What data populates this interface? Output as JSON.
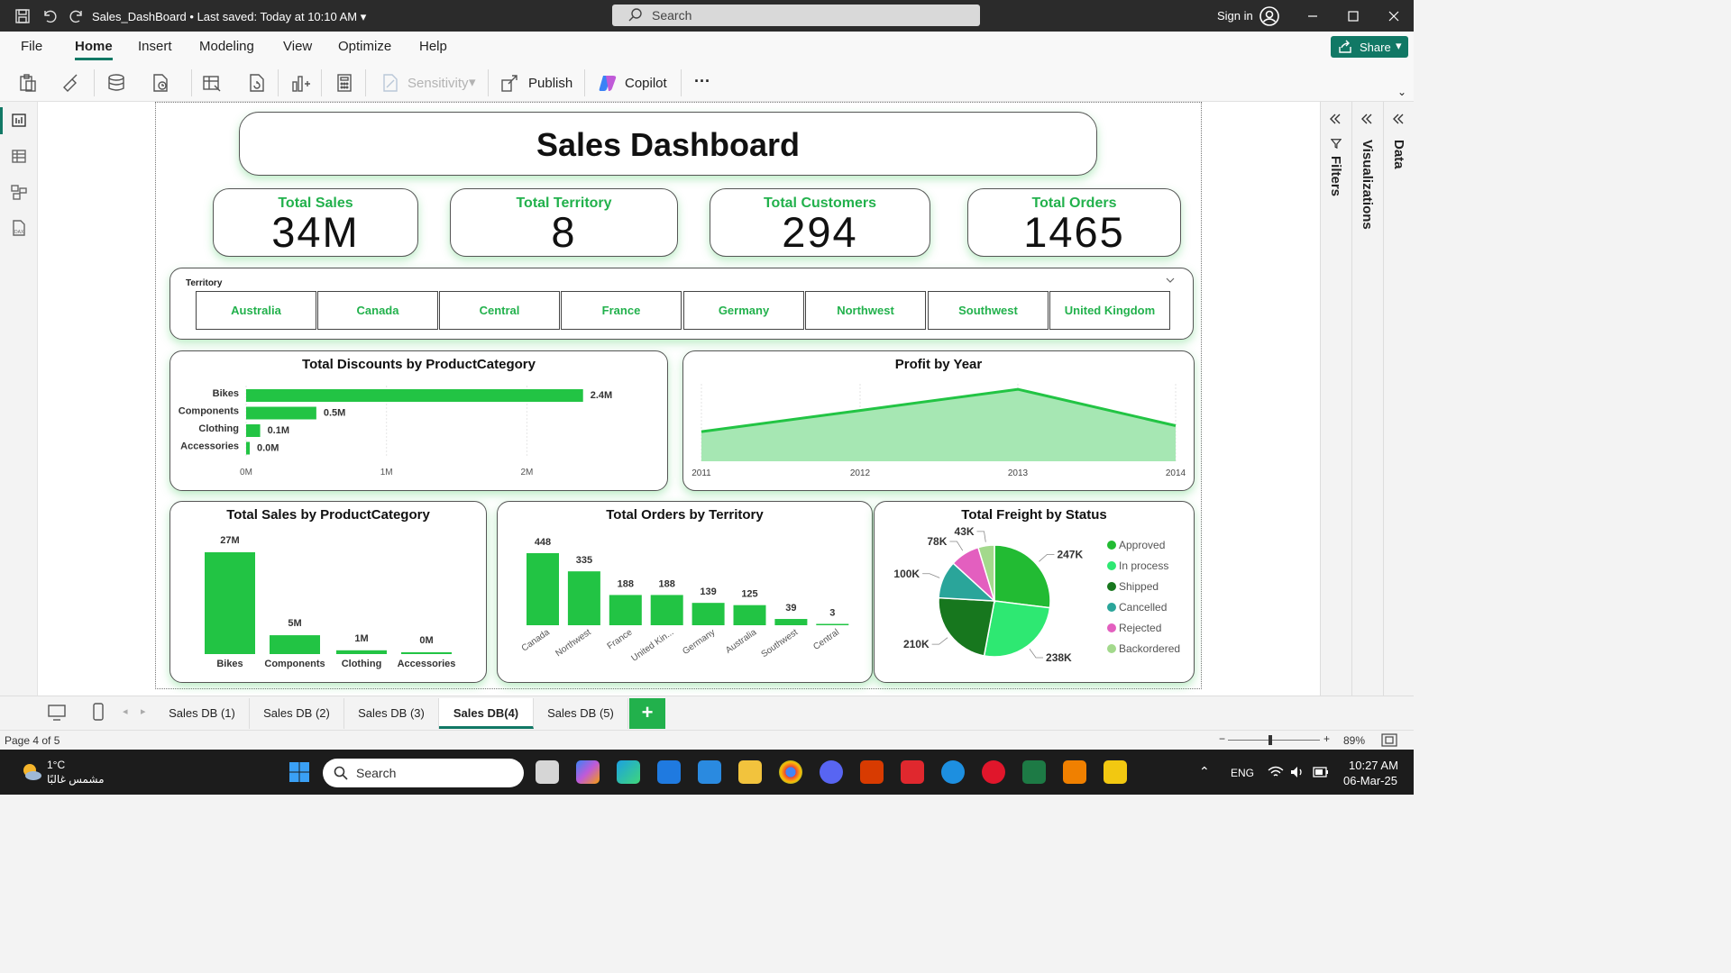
{
  "window": {
    "filename": "Sales_DashBoard",
    "saved_status": "Last saved: Today at 10:10 AM",
    "search_placeholder": "Search",
    "signin": "Sign in"
  },
  "menu": [
    "File",
    "Home",
    "Insert",
    "Modeling",
    "View",
    "Optimize",
    "Help"
  ],
  "share_label": "Share",
  "ribbon": {
    "sensitivity": "Sensitivity",
    "publish": "Publish",
    "copilot": "Copilot",
    "more": "···"
  },
  "dashboard": {
    "title": "Sales Dashboard",
    "kpis": [
      {
        "label": "Total Sales",
        "value": "34M"
      },
      {
        "label": "Total Territory",
        "value": "8"
      },
      {
        "label": "Total Customers",
        "value": "294"
      },
      {
        "label": "Total Orders",
        "value": "1465"
      }
    ],
    "slicer": {
      "label": "Territory",
      "items": [
        "Australia",
        "Canada",
        "Central",
        "France",
        "Germany",
        "Northwest",
        "Southwest",
        "United Kingdom"
      ]
    }
  },
  "chart_data": [
    {
      "type": "bar",
      "orientation": "horizontal",
      "title": "Total Discounts by ProductCategory",
      "categories": [
        "Bikes",
        "Components",
        "Clothing",
        "Accessories"
      ],
      "values": [
        2.4,
        0.5,
        0.1,
        0.0
      ],
      "data_labels": [
        "2.4M",
        "0.5M",
        "0.1M",
        "0.0M"
      ],
      "x_ticks": [
        "0M",
        "1M",
        "2M"
      ],
      "xlim": [
        0,
        2.8
      ],
      "unit": "M",
      "color": "#22c444"
    },
    {
      "type": "area",
      "title": "Profit by Year",
      "x": [
        "2011",
        "2012",
        "2013",
        "2014"
      ],
      "values": [
        0.35,
        0.6,
        0.85,
        0.42
      ],
      "ylim": [
        0,
        1
      ],
      "grid": true,
      "color": "#22c444",
      "fill": "#a6e7b3"
    },
    {
      "type": "bar",
      "title": "Total Sales by ProductCategory",
      "categories": [
        "Bikes",
        "Components",
        "Clothing",
        "Accessories"
      ],
      "values": [
        27,
        5,
        1,
        0
      ],
      "data_labels": [
        "27M",
        "5M",
        "1M",
        "0M"
      ],
      "unit": "M",
      "color": "#22c444"
    },
    {
      "type": "bar",
      "title": "Total Orders by Territory",
      "categories": [
        "Canada",
        "Northwest",
        "France",
        "United Kin...",
        "Germany",
        "Australia",
        "Southwest",
        "Central"
      ],
      "values": [
        448,
        335,
        188,
        188,
        139,
        125,
        39,
        3
      ],
      "color": "#22c444"
    },
    {
      "type": "pie",
      "title": "Total Freight by Status",
      "labels": [
        "Approved",
        "In process",
        "Shipped",
        "Cancelled",
        "Rejected",
        "Backordered"
      ],
      "values": [
        247,
        238,
        210,
        100,
        78,
        43
      ],
      "data_labels": [
        "247K",
        "238K",
        "210K",
        "100K",
        "78K",
        "43K"
      ],
      "colors": [
        "#22bb33",
        "#2ee872",
        "#17771e",
        "#2aa59a",
        "#e35fbf",
        "#a3d98c"
      ],
      "legend": "right"
    }
  ],
  "panes": {
    "filters": "Filters",
    "visualizations": "Visualizations",
    "data": "Data"
  },
  "tabs": [
    "Sales DB (1)",
    "Sales DB (2)",
    "Sales DB (3)",
    "Sales DB(4)",
    "Sales DB (5)"
  ],
  "add_tab": "+",
  "status": {
    "page": "Page 4 of 5",
    "zoom": "89%",
    "zoom_level": 0.89
  },
  "taskbar": {
    "weather_temp": "1°C",
    "weather_text": "مشمس غالبًا",
    "search": "Search",
    "lang": "ENG",
    "time": "10:27 AM",
    "date": "06-Mar-25"
  }
}
